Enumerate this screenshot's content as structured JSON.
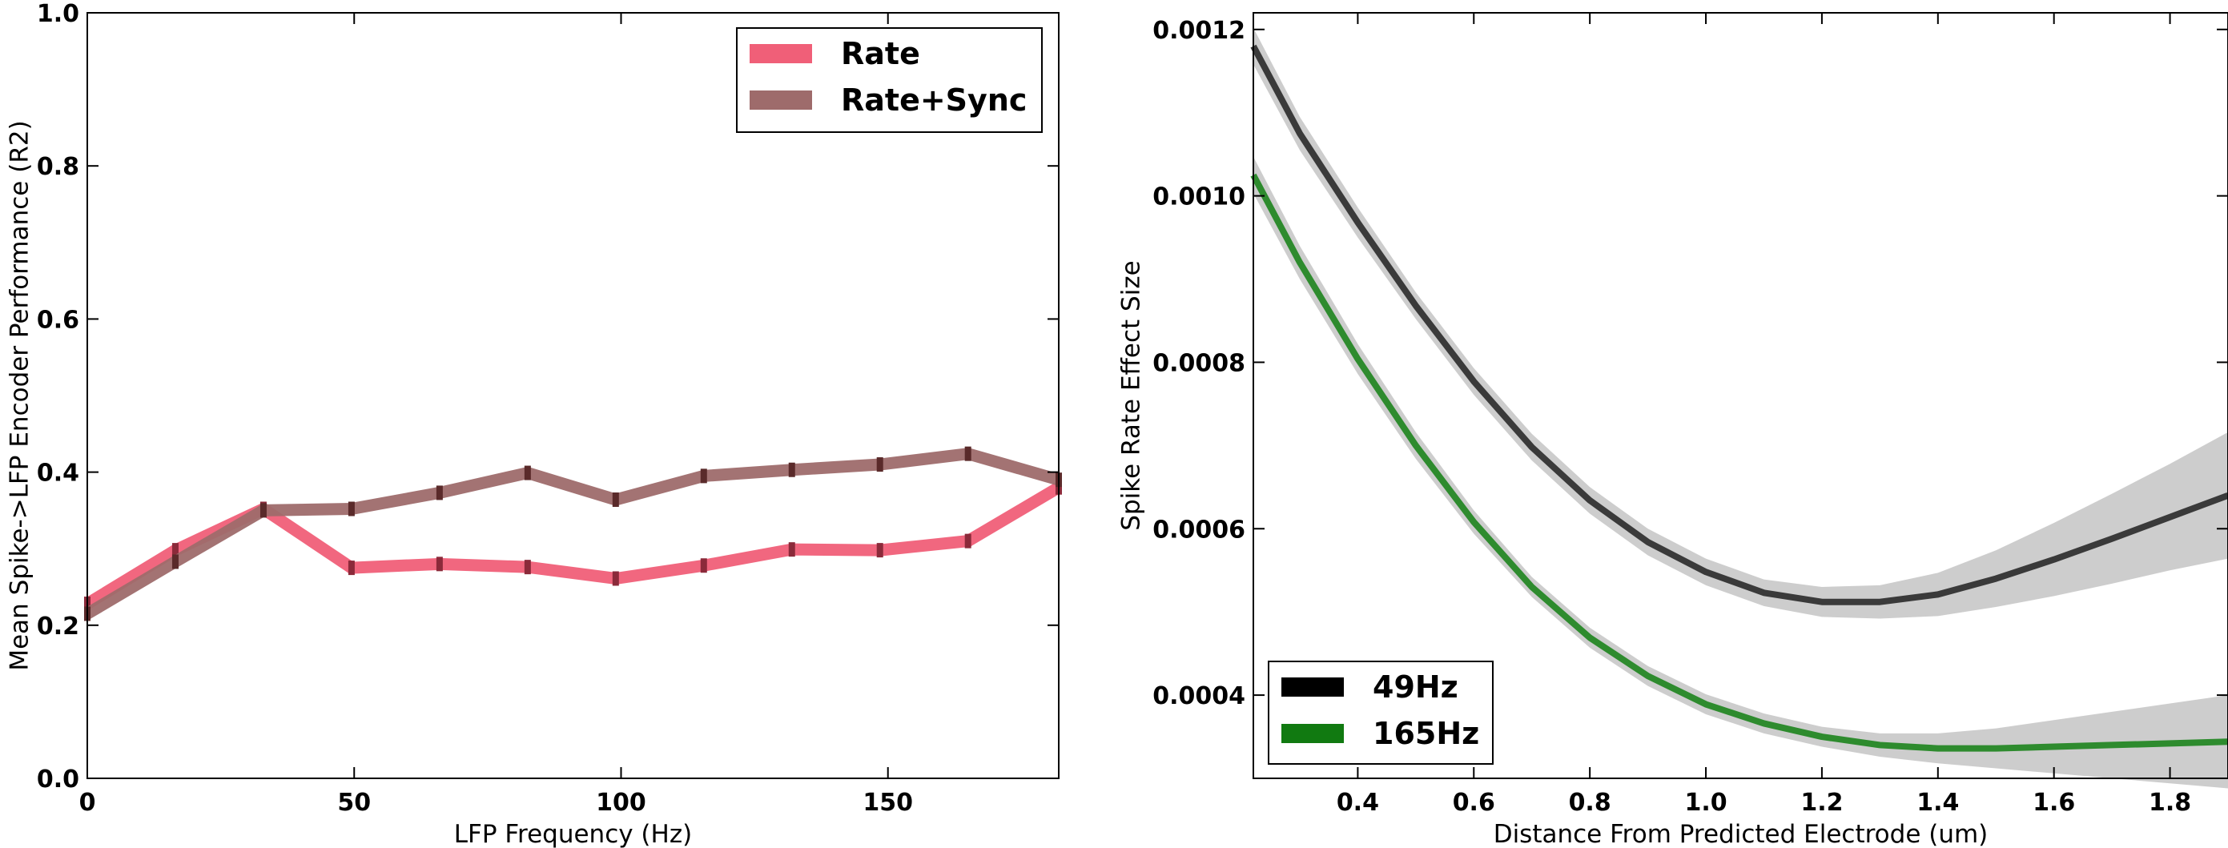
{
  "chart_data": [
    {
      "type": "line",
      "title": "",
      "xlabel": "LFP Frequency (Hz)",
      "ylabel": "Mean Spike->LFP Encoder Performance (R2)",
      "xlim": [
        0,
        182
      ],
      "ylim": [
        0,
        1.0
      ],
      "xticks": [
        "0",
        "50",
        "100",
        "150"
      ],
      "xtick_values": [
        0,
        50,
        100,
        150
      ],
      "yticks": [
        "0.0",
        "0.2",
        "0.4",
        "0.6",
        "0.8",
        "1.0"
      ],
      "ytick_values": [
        0,
        0.2,
        0.4,
        0.6,
        0.8,
        1.0
      ],
      "grid": false,
      "legend_position": "top-right",
      "x": [
        0,
        16.5,
        33,
        49.5,
        66,
        82.5,
        99,
        115.5,
        132,
        148.5,
        165,
        182
      ],
      "series": [
        {
          "name": "Rate",
          "color": "#f05f78",
          "values": [
            0.228,
            0.298,
            0.352,
            0.275,
            0.28,
            0.276,
            0.261,
            0.278,
            0.299,
            0.298,
            0.31,
            0.38
          ]
        },
        {
          "name": "Rate+Sync",
          "color": "#9e6b6b",
          "values": [
            0.215,
            0.283,
            0.35,
            0.352,
            0.373,
            0.399,
            0.364,
            0.395,
            0.403,
            0.41,
            0.424,
            0.39
          ]
        }
      ]
    },
    {
      "type": "line",
      "title": "",
      "xlabel": "Distance From Predicted Electrode (um)",
      "ylabel": "Spike Rate Effect Size",
      "xlim": [
        0.22,
        1.9
      ],
      "ylim": [
        0.0003,
        0.00122
      ],
      "xticks": [
        "0.4",
        "0.6",
        "0.8",
        "1.0",
        "1.2",
        "1.4",
        "1.6",
        "1.8"
      ],
      "xtick_values": [
        0.4,
        0.6,
        0.8,
        1.0,
        1.2,
        1.4,
        1.6,
        1.8
      ],
      "yticks": [
        "0.0004",
        "0.0006",
        "0.0008",
        "0.0010",
        "0.0012"
      ],
      "ytick_values": [
        0.0004,
        0.0006,
        0.0008,
        0.001,
        0.0012
      ],
      "grid": false,
      "legend_position": "bottom-left",
      "x": [
        0.22,
        0.3,
        0.4,
        0.5,
        0.6,
        0.7,
        0.8,
        0.9,
        1.0,
        1.1,
        1.2,
        1.3,
        1.4,
        1.5,
        1.6,
        1.7,
        1.8,
        1.9
      ],
      "series": [
        {
          "name": "49Hz",
          "color": "#3a3a3a",
          "values": [
            0.00118,
            0.001075,
            0.000968,
            0.000868,
            0.000777,
            0.000698,
            0.000634,
            0.000584,
            0.000548,
            0.000523,
            0.000512,
            0.000512,
            0.000521,
            0.00054,
            0.000563,
            0.000588,
            0.000614,
            0.00064
          ],
          "band": [
            2.2e-05,
            2e-05,
            1.8e-05,
            1.6e-05,
            1.6e-05,
            1.6e-05,
            1.6e-05,
            1.6e-05,
            1.6e-05,
            1.6e-05,
            1.8e-05,
            2e-05,
            2.6e-05,
            3.4e-05,
            4.4e-05,
            5.4e-05,
            6.4e-05,
            7.6e-05
          ]
        },
        {
          "name": "165Hz",
          "color": "#2e8b2e",
          "values": [
            0.001025,
            0.00092,
            0.000804,
            0.0007,
            0.000608,
            0.00053,
            0.000469,
            0.000423,
            0.000389,
            0.000366,
            0.00035,
            0.00034,
            0.000336,
            0.000336,
            0.000338,
            0.00034,
            0.000342,
            0.000344
          ],
          "band": [
            2.2e-05,
            2e-05,
            1.8e-05,
            1.6e-05,
            1.4e-05,
            1.2e-05,
            1.2e-05,
            1.2e-05,
            1.2e-05,
            1.2e-05,
            1.2e-05,
            1.4e-05,
            1.8e-05,
            2.4e-05,
            3.2e-05,
            4e-05,
            4.8e-05,
            5.6e-05
          ]
        }
      ]
    }
  ]
}
